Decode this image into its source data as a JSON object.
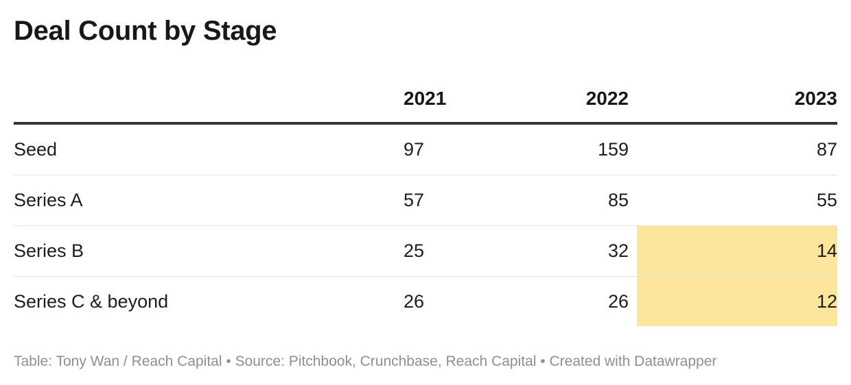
{
  "chart_data": {
    "type": "table",
    "title": "Deal Count by Stage",
    "columns": [
      "",
      "2021",
      "2022",
      "2023"
    ],
    "rows": [
      {
        "stage": "Seed",
        "values": [
          "97",
          "159",
          "87"
        ],
        "highlight_2023": false
      },
      {
        "stage": "Series A",
        "values": [
          "57",
          "85",
          "55"
        ],
        "highlight_2023": false
      },
      {
        "stage": "Series B",
        "values": [
          "25",
          "32",
          "14"
        ],
        "highlight_2023": true
      },
      {
        "stage": "Series C & beyond",
        "values": [
          "26",
          "26",
          "12"
        ],
        "highlight_2023": true
      }
    ],
    "highlight_color": "#fde59d"
  },
  "footer": {
    "text": "Table: Tony Wan / Reach Capital • Source: Pitchbook, Crunchbase, Reach Capital • Created with Datawrapper"
  }
}
